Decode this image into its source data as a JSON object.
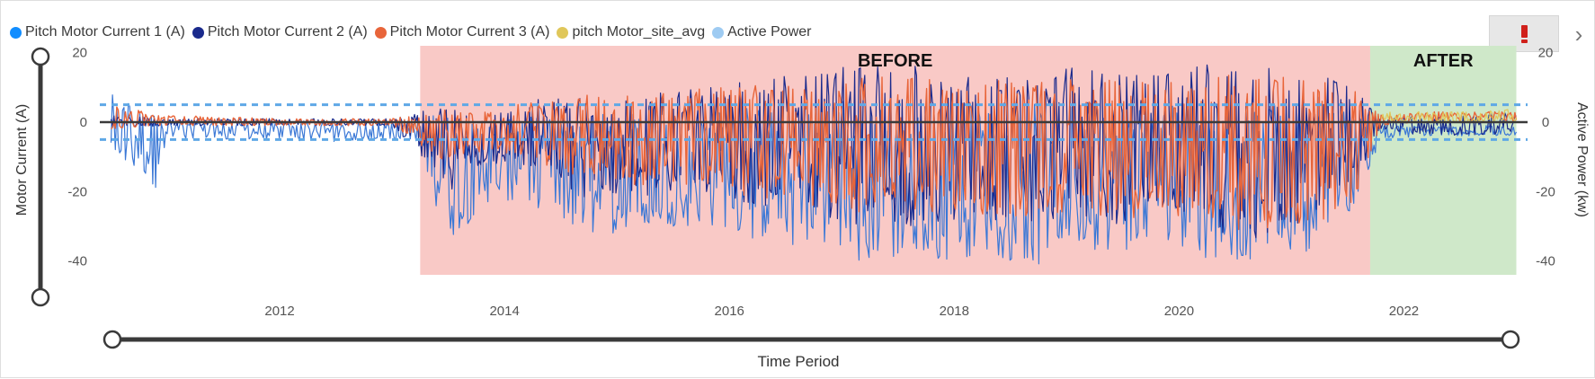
{
  "legend": [
    {
      "label": "Pitch Motor Current 1 (A)",
      "color": "#118dff"
    },
    {
      "label": "Pitch Motor Current 2 (A)",
      "color": "#1a2a8c"
    },
    {
      "label": "Pitch Motor Current 3 (A)",
      "color": "#e8653a"
    },
    {
      "label": "pitch Motor_site_avg",
      "color": "#e0c75a"
    },
    {
      "label": "Active Power",
      "color": "#9ecbf2"
    }
  ],
  "icons": {
    "warning": "warning-icon",
    "next": "chevron-right-icon"
  },
  "chart_data": {
    "type": "line",
    "title": "",
    "xlabel": "Time Period",
    "ylabel": "Motor Current (A)",
    "y2label": "Active Power (kw)",
    "xlim": [
      2010.4,
      2023.1
    ],
    "ylim": [
      -44,
      22
    ],
    "y2lim": [
      -44,
      22
    ],
    "xticks": [
      2012,
      2014,
      2016,
      2018,
      2020,
      2022
    ],
    "yticks": [
      20,
      0,
      -20,
      -40
    ],
    "y2ticks": [
      20,
      0,
      -20,
      -40
    ],
    "reference_lines": [
      5,
      -5
    ],
    "regions": [
      {
        "label": "BEFORE",
        "x": [
          2013.25,
          2021.7
        ],
        "color": "#f9c9c6"
      },
      {
        "label": "AFTER",
        "x": [
          2021.7,
          2023.0
        ],
        "color": "#cfe8c9"
      }
    ],
    "series": [
      {
        "name": "Pitch Motor Current 1 (A)",
        "color": "#3b78d6",
        "x": [
          2010.5,
          2010.7,
          2010.9,
          2011.0,
          2011.3,
          2011.6,
          2012.0,
          2012.4,
          2012.8,
          2013.2,
          2013.5,
          2013.9,
          2014.3,
          2014.7,
          2015.1,
          2015.5,
          2015.9,
          2016.3,
          2016.7,
          2017.1,
          2017.5,
          2017.9,
          2018.3,
          2018.7,
          2019.1,
          2019.5,
          2019.9,
          2020.3,
          2020.7,
          2021.1,
          2021.5,
          2021.8,
          2022.2,
          2022.6,
          2023.0
        ],
        "min": [
          -12,
          -14,
          -19,
          -5,
          -5,
          -5,
          -5,
          -6,
          -5,
          -5,
          -35,
          -22,
          -25,
          -33,
          -32,
          -30,
          -30,
          -35,
          -36,
          -41,
          -40,
          -40,
          -38,
          -42,
          -36,
          -38,
          -34,
          -40,
          -40,
          -38,
          -28,
          -5,
          -4,
          -4,
          -4
        ],
        "max": [
          8,
          7,
          2,
          1,
          0,
          0,
          0,
          0,
          0,
          0,
          4,
          0,
          2,
          2,
          3,
          3,
          4,
          5,
          6,
          6,
          6,
          6,
          6,
          6,
          6,
          6,
          6,
          6,
          5,
          5,
          3,
          -1,
          -1,
          -1,
          -1
        ]
      },
      {
        "name": "Pitch Motor Current 2 (A)",
        "color": "#1a2a8c",
        "x": [
          2010.5,
          2011.0,
          2012.0,
          2013.0,
          2013.5,
          2013.9,
          2014.3,
          2014.7,
          2015.1,
          2015.5,
          2015.9,
          2016.3,
          2016.7,
          2017.1,
          2017.5,
          2017.9,
          2018.3,
          2018.7,
          2019.1,
          2019.5,
          2019.9,
          2020.3,
          2020.7,
          2021.1,
          2021.5,
          2021.8,
          2022.2,
          2022.6,
          2023.0
        ],
        "min": [
          -2,
          -1,
          -1,
          -1,
          -20,
          -12,
          -15,
          -22,
          -22,
          -20,
          -22,
          -24,
          -26,
          -30,
          -30,
          -30,
          -28,
          -30,
          -28,
          -30,
          -26,
          -32,
          -34,
          -30,
          -22,
          -2,
          -4,
          -4,
          -3
        ],
        "max": [
          2,
          1,
          1,
          1,
          5,
          3,
          7,
          8,
          9,
          10,
          11,
          13,
          14,
          18,
          17,
          15,
          14,
          15,
          16,
          15,
          14,
          17,
          16,
          15,
          12,
          1,
          2,
          2,
          3
        ]
      },
      {
        "name": "Pitch Motor Current 3 (A)",
        "color": "#e8653a",
        "x": [
          2010.5,
          2011.0,
          2012.0,
          2013.0,
          2013.5,
          2013.9,
          2014.3,
          2014.7,
          2015.1,
          2015.5,
          2015.9,
          2016.3,
          2016.7,
          2017.1,
          2017.5,
          2017.9,
          2018.3,
          2018.7,
          2019.1,
          2019.5,
          2019.9,
          2020.3,
          2020.7,
          2021.1,
          2021.5,
          2021.8,
          2022.2,
          2022.6,
          2023.0
        ],
        "min": [
          -2,
          -1,
          -1,
          -1,
          -12,
          -8,
          -12,
          -16,
          -18,
          -18,
          -20,
          -22,
          -24,
          -26,
          -26,
          -27,
          -28,
          -28,
          -27,
          -28,
          -26,
          -30,
          -32,
          -30,
          -28,
          -1,
          0,
          0,
          0
        ],
        "max": [
          5,
          2,
          1,
          1,
          4,
          3,
          7,
          8,
          8,
          9,
          10,
          11,
          12,
          13,
          13,
          12,
          12,
          13,
          13,
          12,
          12,
          14,
          14,
          13,
          11,
          2,
          3,
          3,
          3
        ]
      },
      {
        "name": "pitch Motor_site_avg",
        "color": "#e0c75a",
        "x": [
          2021.8,
          2022.2,
          2022.6,
          2023.0
        ],
        "min": [
          0,
          0,
          0,
          0
        ],
        "max": [
          3,
          3,
          3,
          4
        ]
      },
      {
        "name": "Active Power",
        "color": "#9ecbf2",
        "x": [
          2010.4,
          2023.1
        ],
        "values": [
          0,
          0
        ]
      }
    ]
  }
}
